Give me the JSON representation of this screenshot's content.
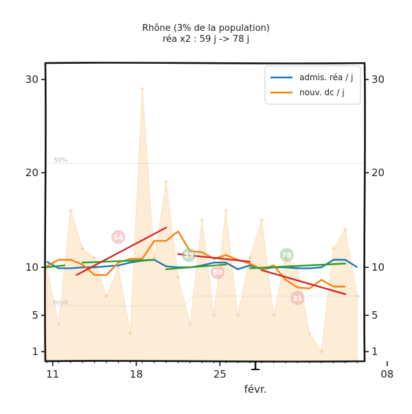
{
  "chart_data": {
    "type": "line",
    "title": "Rhône (3% de la population)",
    "subtitle": "réa x2 : 59 j -> 78 j",
    "x_labels": [
      "11",
      "18",
      "25",
      "08"
    ],
    "x_month_label": "févr.",
    "y_ticks": [
      1,
      5,
      10,
      20,
      30
    ],
    "y_ticks_right": [
      1,
      5,
      10,
      20,
      30
    ],
    "reference_lines": [
      {
        "label": "50%",
        "y": 21.0
      },
      {
        "label": "bruit",
        "y_start": 6.0,
        "y_end": 7.0
      }
    ],
    "legend": [
      {
        "label": "admis. réa / j",
        "color": "#1f77b4"
      },
      {
        "label": "nouv. dc / j",
        "color": "#ff7f0e"
      }
    ],
    "background_series": {
      "name": "",
      "color": "#fdebd0",
      "points": [
        [
          0,
          10
        ],
        [
          1,
          4
        ],
        [
          2,
          16
        ],
        [
          3,
          12
        ],
        [
          4,
          11
        ],
        [
          5,
          7
        ],
        [
          6,
          10
        ],
        [
          7,
          3
        ],
        [
          8,
          29
        ],
        [
          9,
          11
        ],
        [
          10,
          19
        ],
        [
          11,
          9
        ],
        [
          12,
          4
        ],
        [
          13,
          15
        ],
        [
          14,
          5
        ],
        [
          15,
          16
        ],
        [
          16,
          5
        ],
        [
          17,
          11
        ],
        [
          18,
          15
        ],
        [
          19,
          5
        ],
        [
          20,
          11
        ],
        [
          21,
          10
        ],
        [
          22,
          3
        ],
        [
          23,
          1
        ],
        [
          24,
          12
        ],
        [
          25,
          14
        ],
        [
          26,
          7
        ]
      ]
    },
    "series": [
      {
        "name": "admis. réa / j",
        "color": "#1f77b4",
        "points": [
          [
            0,
            10.6
          ],
          [
            1,
            9.9
          ],
          [
            2,
            9.9
          ],
          [
            3,
            10
          ],
          [
            4,
            10
          ],
          [
            5,
            10.1
          ],
          [
            6,
            10.2
          ],
          [
            7,
            10.5
          ],
          [
            8,
            10.7
          ],
          [
            9,
            10.8
          ],
          [
            10,
            10.1
          ],
          [
            11,
            10
          ],
          [
            12,
            10
          ],
          [
            13,
            10.2
          ],
          [
            14,
            10.5
          ],
          [
            15,
            10.5
          ],
          [
            16,
            9.8
          ],
          [
            17,
            10.2
          ],
          [
            18,
            9.8
          ],
          [
            19,
            10
          ],
          [
            20,
            10
          ],
          [
            21,
            9.9
          ],
          [
            22,
            9.9
          ],
          [
            23,
            10
          ],
          [
            24,
            10.8
          ],
          [
            25,
            10.8
          ],
          [
            26,
            10
          ]
        ]
      },
      {
        "name": "nouv. dc / j",
        "color": "#ff7f0e",
        "points": [
          [
            0,
            10.1
          ],
          [
            1,
            10.8
          ],
          [
            2,
            10.8
          ],
          [
            3,
            10.3
          ],
          [
            4,
            9.2
          ],
          [
            5,
            9.2
          ],
          [
            6,
            10.5
          ],
          [
            7,
            10.9
          ],
          [
            8,
            10.9
          ],
          [
            9,
            12.8
          ],
          [
            10,
            12.8
          ],
          [
            11,
            13.8
          ],
          [
            12,
            11.7
          ],
          [
            13,
            11.6
          ],
          [
            14,
            10.9
          ],
          [
            15,
            11.3
          ],
          [
            16,
            10.8
          ],
          [
            17,
            10.4
          ],
          [
            18,
            9.8
          ],
          [
            19,
            10.2
          ],
          [
            20,
            8.7
          ],
          [
            21,
            7.9
          ],
          [
            22,
            7.8
          ],
          [
            23,
            8.7
          ],
          [
            24,
            8
          ],
          [
            25,
            8
          ]
        ]
      }
    ],
    "trend_segments": [
      {
        "color": "#2ca02c",
        "points": [
          [
            0,
            10
          ],
          [
            1.5,
            10.2
          ]
        ]
      },
      {
        "color": "#2ca02c",
        "points": [
          [
            3,
            10.5
          ],
          [
            9,
            10.8
          ]
        ]
      },
      {
        "color": "#2ca02c",
        "points": [
          [
            10,
            9.8
          ],
          [
            15,
            10.3
          ]
        ]
      },
      {
        "color": "#2ca02c",
        "points": [
          [
            17,
            9.9
          ],
          [
            25,
            10.4
          ]
        ]
      },
      {
        "color": "#d62728",
        "points": [
          [
            2.5,
            9.2
          ],
          [
            10,
            14.2
          ]
        ]
      },
      {
        "color": "#d62728",
        "points": [
          [
            11,
            11.4
          ],
          [
            17,
            10.6
          ]
        ]
      },
      {
        "color": "#d62728",
        "points": [
          [
            18,
            9.7
          ],
          [
            25,
            7.2
          ]
        ]
      }
    ],
    "badges": [
      {
        "text": "14",
        "x": 6,
        "y": 13.2,
        "color": "#f4a9ab"
      },
      {
        "text": "59",
        "x": 11.9,
        "y": 11.3,
        "color": "#9ec99e"
      },
      {
        "text": "50",
        "x": 14.3,
        "y": 9.5,
        "color": "#f4a9ab"
      },
      {
        "text": "78",
        "x": 20.1,
        "y": 11.3,
        "color": "#9ec99e"
      },
      {
        "text": "21",
        "x": 21,
        "y": 6.8,
        "color": "#f4a9ab"
      }
    ]
  }
}
